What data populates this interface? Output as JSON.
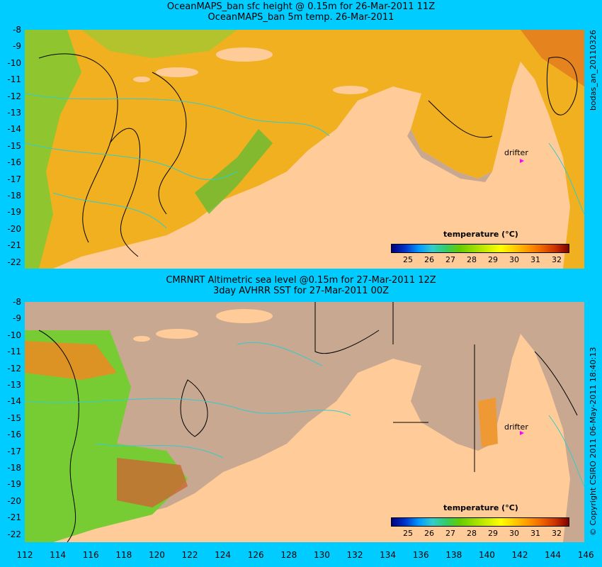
{
  "top": {
    "title_line1": "OceanMAPS_ban sfc height @ 0.15m for 26-Mar-2011 11Z",
    "title_line2": "OceanMAPS_ban 5m temp. 26-Mar-2011",
    "side_label": "bodas_an_20110326",
    "lat_labels": [
      "-8",
      "-9",
      "-10",
      "-11",
      "-12",
      "-13",
      "-14",
      "-15",
      "-16",
      "-17",
      "-18",
      "-19",
      "-20",
      "-21",
      "-22"
    ],
    "colorbar_title": "temperature (°C)",
    "colorbar_ticks": [
      "25",
      "26",
      "27",
      "28",
      "29",
      "30",
      "31",
      "32"
    ],
    "drifter_label": "drifter"
  },
  "bottom": {
    "title_line1": "CMRNRT Altimetric sea level  @0.15m  for 27-Mar-2011 12Z",
    "title_line2": "3day AVHRR SST for 27-Mar-2011 00Z",
    "side_label": "© Copyright CSIRO 2011   06-May-2011 18:40:13",
    "lat_labels": [
      "-8",
      "-9",
      "-10",
      "-11",
      "-12",
      "-13",
      "-14",
      "-15",
      "-16",
      "-17",
      "-18",
      "-19",
      "-20",
      "-21",
      "-22"
    ],
    "colorbar_title": "temperature (°C)",
    "colorbar_ticks": [
      "25",
      "26",
      "27",
      "28",
      "29",
      "30",
      "31",
      "32"
    ],
    "drifter_label": "drifter"
  },
  "lon_labels": [
    "112",
    "114",
    "116",
    "118",
    "120",
    "122",
    "124",
    "126",
    "128",
    "130",
    "132",
    "134",
    "136",
    "138",
    "140",
    "142",
    "144",
    "146"
  ],
  "colors": {
    "background": "#00ccff",
    "land": "#ffcc99",
    "land_bottom_grey": "#c8a890",
    "sea_warm": "#f0b020",
    "sea_green": "#66cc33",
    "contour_black": "#000000",
    "contour_cyan": "#33cccc",
    "drifter": "#ff00ff"
  },
  "colorbar_colors": [
    "#00007f",
    "#0033cc",
    "#0099ff",
    "#33cccc",
    "#33cc66",
    "#66cc00",
    "#99dd00",
    "#ccee00",
    "#ffff00",
    "#ffcc00",
    "#ff9900",
    "#ee6600",
    "#cc3300",
    "#800000"
  ]
}
